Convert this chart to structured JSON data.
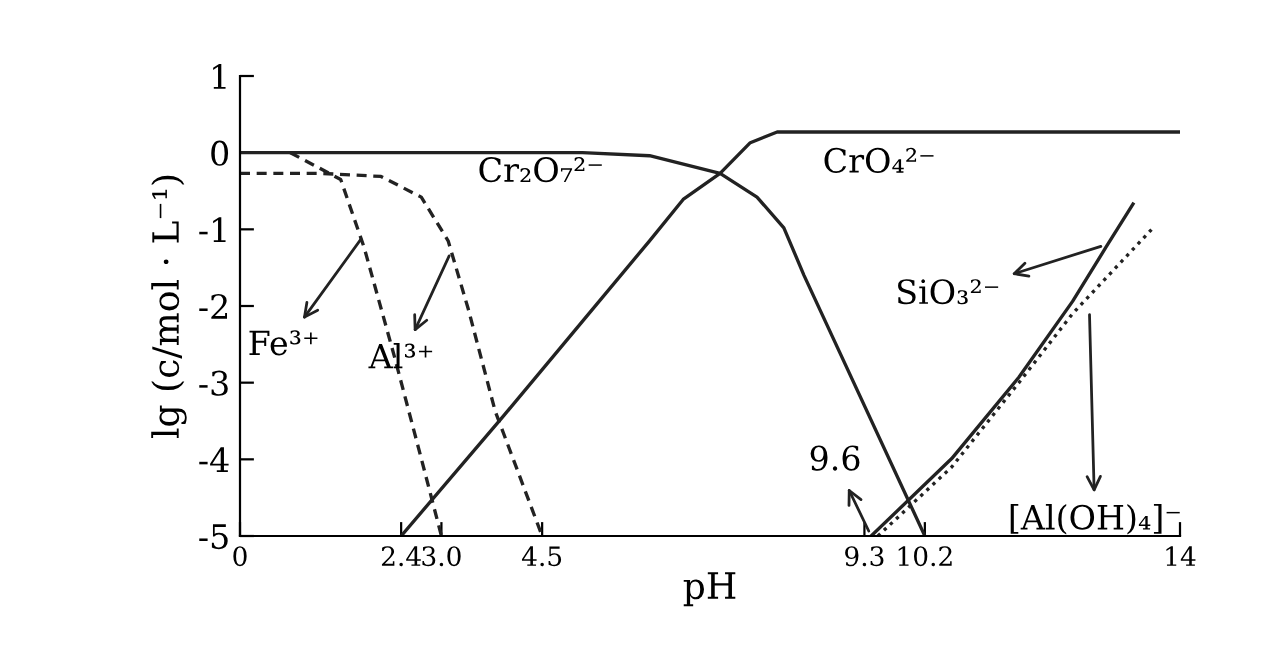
{
  "chart_data": {
    "type": "line",
    "xlabel": "pH",
    "ylabel": "lg (c/mol · L⁻¹)",
    "xlim": [
      0,
      14
    ],
    "ylim": [
      -5,
      1
    ],
    "xticks": [
      0,
      2.4,
      {
        "value": 3.0,
        "label": "3.0"
      },
      4.5,
      9.3,
      10.2,
      14
    ],
    "yticks": [
      -5,
      -4,
      -3,
      -2,
      -1,
      0,
      1
    ],
    "grid": false,
    "legend": false,
    "marker": "none",
    "series": [
      {
        "color": "#222222",
        "line_style": "solid",
        "x": [
          0,
          5.1,
          6.1,
          7.15,
          7.7,
          8.1,
          8.4,
          10.2
        ],
        "values": [
          0,
          0,
          -0.04,
          -0.27,
          -0.58,
          -0.98,
          -1.6,
          -5
        ]
      },
      {
        "color": "#222222",
        "line_style": "solid",
        "x": [
          2.4,
          3.9,
          5.1,
          6.1,
          6.6,
          7.15,
          7.6,
          8.0,
          8.9,
          14
        ],
        "values": [
          -5,
          -3.46,
          -2.2,
          -1.15,
          -0.61,
          -0.27,
          0.13,
          0.27,
          0.27,
          0.27
        ]
      },
      {
        "color": "#222222",
        "line_style": "dashed",
        "x": [
          0.75,
          1.5,
          1.85,
          2.3,
          2.7,
          3.0
        ],
        "values": [
          0,
          -0.35,
          -1.24,
          -2.66,
          -3.99,
          -5
        ]
      },
      {
        "color": "#222222",
        "line_style": "dashed",
        "x": [
          0,
          1.2,
          2.1,
          2.7,
          3.1,
          3.4,
          3.8,
          4.5
        ],
        "values": [
          -0.27,
          -0.27,
          -0.31,
          -0.58,
          -1.15,
          -2.04,
          -3.37,
          -5
        ]
      },
      {
        "color": "#222222",
        "line_style": "solid",
        "x": [
          9.4,
          10.6,
          11.6,
          12.4,
          12.9,
          13.3
        ],
        "values": [
          -5,
          -3.99,
          -2.93,
          -1.94,
          -1.23,
          -0.67
        ]
      },
      {
        "color": "#222222",
        "line_style": "dotted",
        "x": [
          9.5,
          10.6,
          11.6,
          12.4,
          13.6
        ],
        "values": [
          -5,
          -4.1,
          -3.0,
          -2.1,
          -0.98
        ]
      }
    ],
    "annotations": [
      "Cr₂O₇²⁻",
      "CrO₄²⁻",
      {
        "text": "Fe³⁺",
        "x": 1.85,
        "y": -1.07
      },
      {
        "text": "Al³⁺",
        "x": 3.15,
        "y": -1.28
      },
      {
        "text": "SiO₃²⁻",
        "x": 12.9,
        "y": -1.2
      },
      {
        "text": "[Al(OH)₄]⁻",
        "x": 12.65,
        "y": -2.04
      },
      {
        "text": "9.6",
        "x": 9.4,
        "y": -5
      }
    ]
  }
}
